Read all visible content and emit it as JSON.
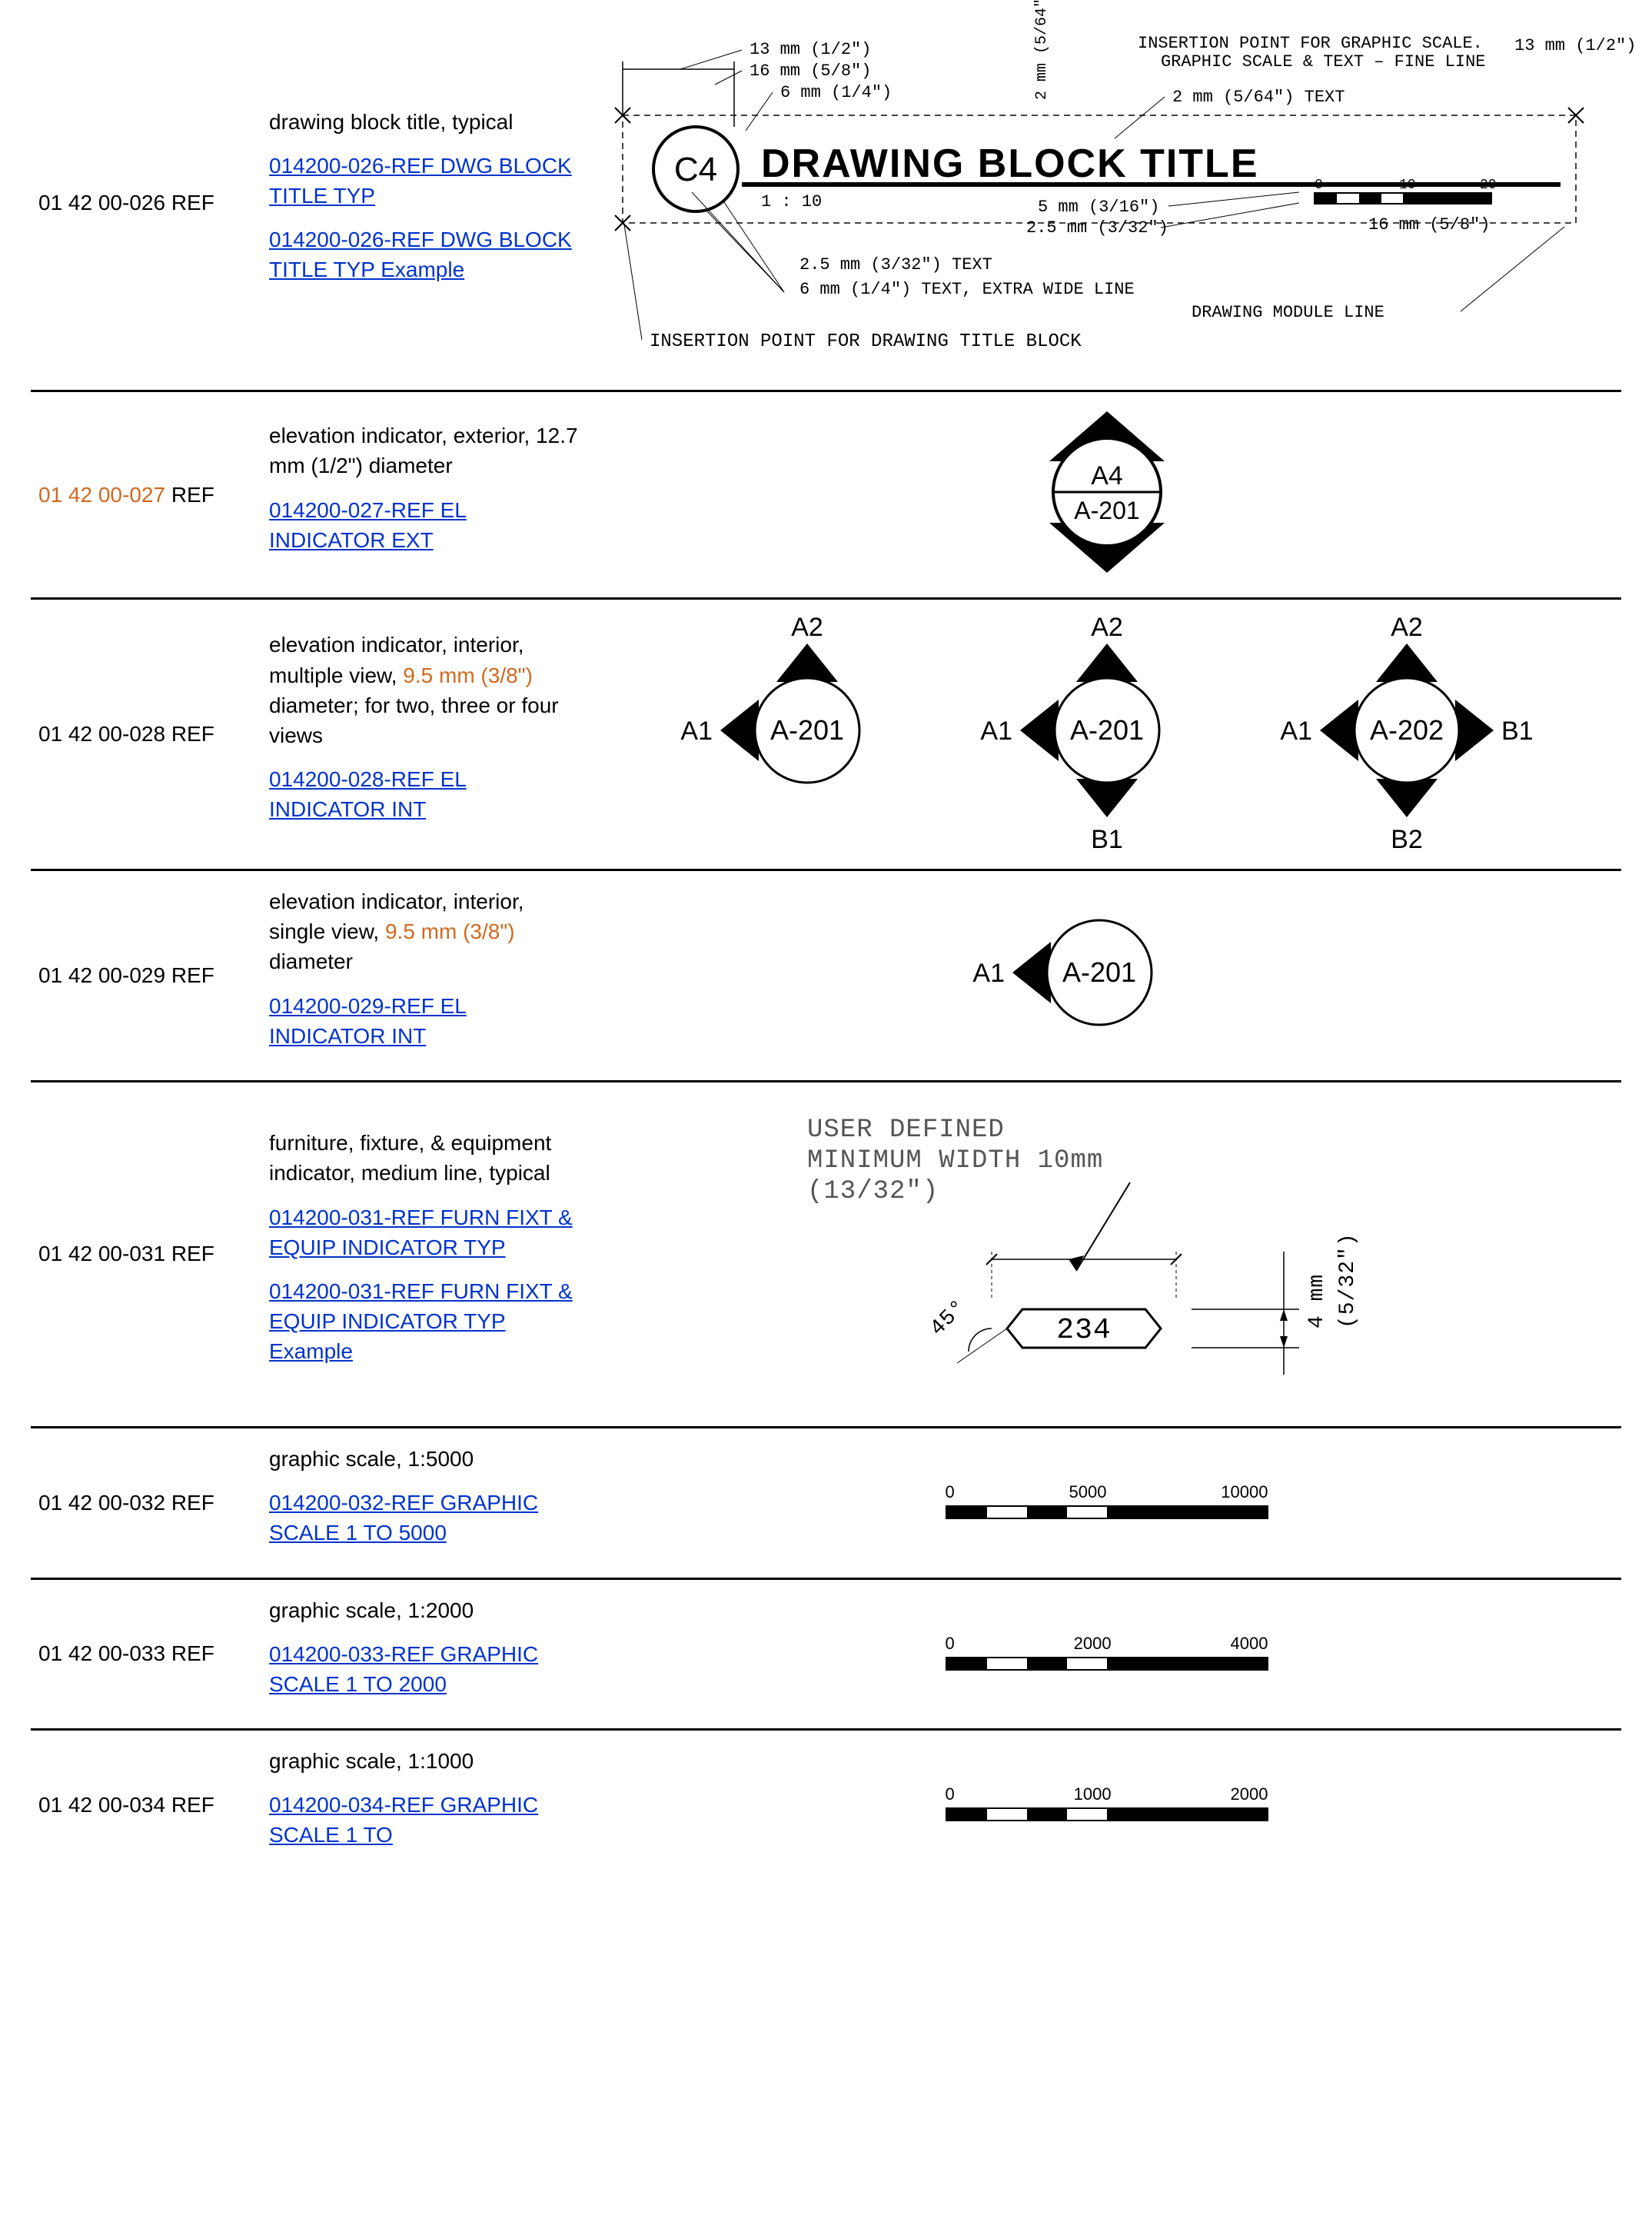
{
  "colors": {
    "text": "#000000",
    "link": "#0033cc",
    "highlight": "#d2691e",
    "rule": "#000000",
    "bg": "#ffffff"
  },
  "rows": [
    {
      "code_prefix": "01 42 00-",
      "code_num": "026",
      "code_suffix": "  REF",
      "code_hl": false,
      "desc": "drawing block title, typical",
      "links": [
        "014200-026-REF DWG BLOCK TITLE TYP",
        "014200-026-REF DWG BLOCK TITLE TYP Example"
      ],
      "figure": "block-title"
    },
    {
      "code_prefix": "01 42 00-",
      "code_num": "027",
      "code_suffix": "  REF",
      "code_hl": true,
      "desc": "elevation indicator, exterior, 12.7 mm (1/2\") diameter",
      "links": [
        "014200-027-REF EL INDICATOR EXT"
      ],
      "figure": "elev-ext"
    },
    {
      "code_prefix": "01 42 00-",
      "code_num": "028",
      "code_suffix": "  REF",
      "code_hl": false,
      "desc_html": "elevation indicator, interior, multiple view, <span class=\"hl\">9.5 mm (3/8\")</span> diameter; for two, three or four views",
      "links": [
        "014200-028-REF EL INDICATOR INT"
      ],
      "figure": "elev-int-multi"
    },
    {
      "code_prefix": "01 42 00-",
      "code_num": "029",
      "code_suffix": "  REF",
      "code_hl": false,
      "desc_html": "elevation indicator, interior, single view, <span class=\"hl\">9.5 mm (3/8\")</span> diameter",
      "links": [
        "014200-029-REF EL INDICATOR INT"
      ],
      "figure": "elev-int-single"
    },
    {
      "code_prefix": "01 42 00-",
      "code_num": "031",
      "code_suffix": "  REF",
      "code_hl": false,
      "desc": "furniture, fixture, & equipment indicator, medium line, typical",
      "links": [
        "014200-031-REF FURN FIXT & EQUIP INDICATOR TYP",
        "014200-031-REF FURN FIXT & EQUIP INDICATOR TYP Example"
      ],
      "figure": "ffe"
    },
    {
      "code_prefix": "01 42 00-",
      "code_num": "032",
      "code_suffix": "  REF",
      "code_hl": false,
      "desc": "graphic scale, 1:5000",
      "links": [
        "014200-032-REF GRAPHIC SCALE 1 TO 5000"
      ],
      "figure": "scale",
      "scale": {
        "mid": "5000",
        "max": "10000"
      }
    },
    {
      "code_prefix": "01 42 00-",
      "code_num": "033",
      "code_suffix": "  REF",
      "code_hl": false,
      "desc": "graphic scale, 1:2000",
      "links": [
        "014200-033-REF GRAPHIC SCALE 1 TO 2000"
      ],
      "figure": "scale",
      "scale": {
        "mid": "2000",
        "max": "4000"
      }
    },
    {
      "code_prefix": "01 42 00-",
      "code_num": "034",
      "code_suffix": "  REF",
      "code_hl": false,
      "desc": "graphic scale, 1:1000",
      "links": [
        "014200-034-REF GRAPHIC SCALE 1 TO"
      ],
      "figure": "scale",
      "scale": {
        "mid": "1000",
        "max": "2000"
      },
      "last": true
    }
  ],
  "fig": {
    "block_title": {
      "title": "DRAWING  BLOCK  TITLE",
      "bubble": "C4",
      "ratio": "1 : 10",
      "annot": {
        "top_13": "13 mm (1/2\")",
        "top_16": "16 mm (5/8\")",
        "top_6": "6 mm (1/4\")",
        "vert_2": "2 mm (5/64\")",
        "insert_scale": "INSERTION POINT FOR GRAPHIC SCALE.",
        "scale_text": "GRAPHIC SCALE & TEXT – FINE LINE",
        "text_2": "2 mm (5/64\") TEXT",
        "right_13": "13 mm (1/2\")",
        "r_5": "5 mm (3/16\")",
        "r_25": "2.5 mm (3/32\")",
        "r_16": "16 mm (5/8\")",
        "b_25": "2.5 mm (3/32\") TEXT",
        "b_6": "6 mm (1/4\") TEXT, EXTRA WIDE LINE",
        "b_module": "DRAWING MODULE LINE",
        "b_insert": "INSERTION POINT FOR DRAWING TITLE BLOCK",
        "scale_0": "0",
        "scale_10": "10",
        "scale_20": "20"
      }
    },
    "elev_ext": {
      "top": "A4",
      "bottom": "A-201"
    },
    "elev_multi": {
      "labels_top": "A2",
      "labels_left": "A1",
      "labels_right": "B1",
      "labels_bottom_b1": "B1",
      "labels_bottom_b2": "B2",
      "center1": "A-201",
      "center2": "A-201",
      "center3": "A-202"
    },
    "elev_single": {
      "left": "A1",
      "center": "A-201"
    },
    "ffe": {
      "note1": "USER DEFINED",
      "note2": "MINIMUM WIDTH 10mm",
      "note3": "(13/32\")",
      "angle": "45°",
      "num": "234",
      "dim": "4 mm",
      "dim2": "(5/32\")"
    }
  }
}
